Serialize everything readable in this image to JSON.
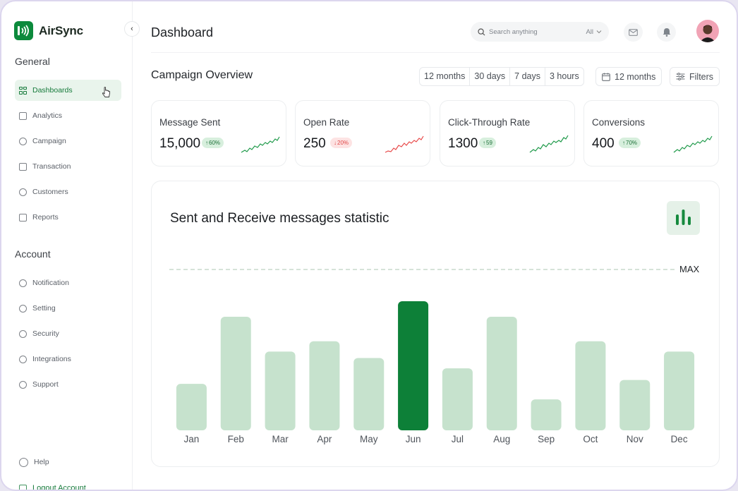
{
  "app": {
    "name": "AirSync",
    "brand_color": "#0c8a3c"
  },
  "sidebar": {
    "general_title": "General",
    "general_items": [
      {
        "label": "Dashboards",
        "icon": "grid-icon",
        "active": true
      },
      {
        "label": "Analytics",
        "icon": "chart-icon"
      },
      {
        "label": "Campaign",
        "icon": "megaphone-icon"
      },
      {
        "label": "Transaction",
        "icon": "receipt-icon"
      },
      {
        "label": "Customers",
        "icon": "headset-icon"
      },
      {
        "label": "Reports",
        "icon": "document-icon"
      }
    ],
    "account_title": "Account",
    "account_items": [
      {
        "label": "Notification",
        "icon": "bell-icon"
      },
      {
        "label": "Setting",
        "icon": "gear-icon"
      },
      {
        "label": "Security",
        "icon": "shield-icon"
      },
      {
        "label": "Integrations",
        "icon": "integrations-icon"
      },
      {
        "label": "Support",
        "icon": "support-icon"
      }
    ],
    "help_label": "Help",
    "logout_label": "Logout Account"
  },
  "header": {
    "title": "Dashboard",
    "search_placeholder": "Search anything",
    "search_scope": "All"
  },
  "overview": {
    "title": "Campaign Overview",
    "ranges": [
      "12 months",
      "30 days",
      "7 days",
      "3 hours"
    ],
    "date_button": "12 months",
    "filters_button": "Filters"
  },
  "kpis": [
    {
      "label": "Message Sent",
      "value": "15,000",
      "change": "60%",
      "direction": "up"
    },
    {
      "label": "Open Rate",
      "value": "250",
      "change": "20%",
      "direction": "down"
    },
    {
      "label": "Click-Through Rate",
      "value": "1300",
      "change": "59",
      "direction": "up"
    },
    {
      "label": "Conversions",
      "value": "400",
      "change": "70%",
      "direction": "up"
    }
  ],
  "colors": {
    "up": "#1f9a4a",
    "down": "#e84a4a",
    "bar": "#c6e2cd",
    "bar_highlight": "#0d8038"
  },
  "chart_data": {
    "type": "bar",
    "title": "Sent and Receive messages statistic",
    "reference_line_label": "MAX",
    "categories": [
      "Jan",
      "Feb",
      "Mar",
      "Apr",
      "May",
      "Jun",
      "Jul",
      "Aug",
      "Sep",
      "Oct",
      "Nov",
      "Dec"
    ],
    "values": [
      36,
      88,
      61,
      69,
      56,
      100,
      48,
      88,
      24,
      69,
      39,
      61
    ],
    "highlight": "Jun",
    "ylim": [
      0,
      100
    ]
  }
}
